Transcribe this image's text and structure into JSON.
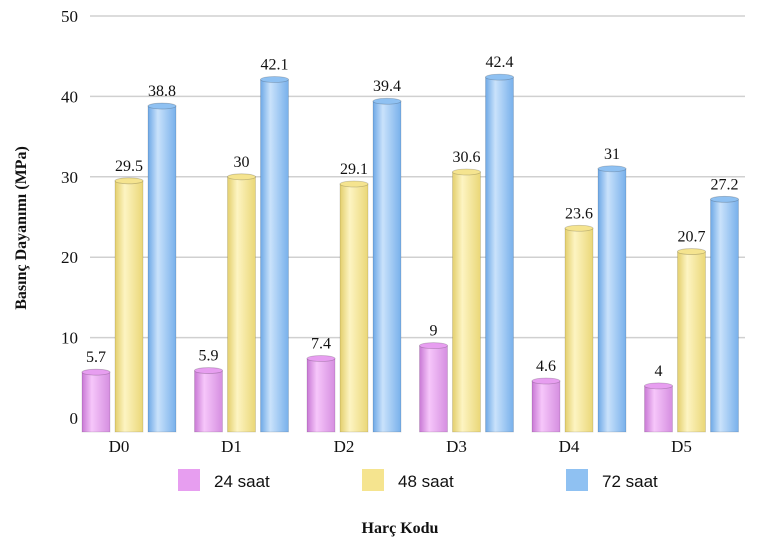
{
  "chart_data": {
    "type": "bar",
    "categories": [
      "D0",
      "D1",
      "D2",
      "D3",
      "D4",
      "D5"
    ],
    "series": [
      {
        "name": "24 saat",
        "values": [
          5.7,
          5.9,
          7.4,
          9,
          4.6,
          4
        ],
        "labels": [
          "5.7",
          "5.9",
          "7.4",
          "9",
          "4.6",
          "4"
        ],
        "color": "#e79ef0"
      },
      {
        "name": "48 saat",
        "values": [
          29.5,
          30,
          29.1,
          30.6,
          23.6,
          20.7
        ],
        "labels": [
          "29.5",
          "30",
          "29.1",
          "30.6",
          "23.6",
          "20.7"
        ],
        "color": "#f5e48f"
      },
      {
        "name": "72 saat",
        "values": [
          38.8,
          42.1,
          39.4,
          42.4,
          31,
          27.2
        ],
        "labels": [
          "38.8",
          "42.1",
          "39.4",
          "42.4",
          "31",
          "27.2"
        ],
        "color": "#8fc1f2"
      }
    ],
    "ylabel": "Basınç Dayanımı  (MPa)",
    "xlabel": "Harç Kodu",
    "ylim": [
      0,
      50
    ],
    "yticks": [
      "0",
      "10",
      "20",
      "30",
      "40",
      "50"
    ],
    "grid": true,
    "legend_position": "bottom"
  }
}
